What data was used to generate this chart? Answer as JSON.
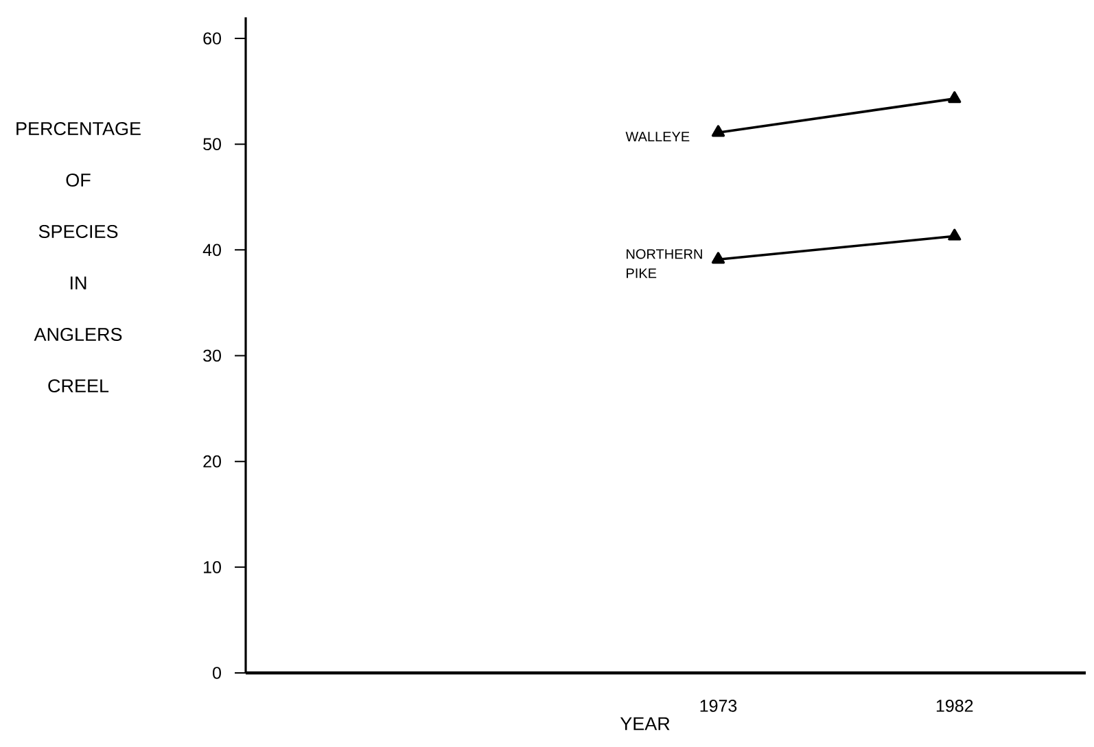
{
  "chart_data": {
    "type": "line",
    "xlabel": "YEAR",
    "ylabel": "PERCENTAGE OF SPECIES IN ANGLERS CREEL",
    "x": [
      1973,
      1982
    ],
    "xlim": [
      1955,
      1987
    ],
    "xticks": [
      1973,
      1982
    ],
    "ylim": [
      0,
      62
    ],
    "yticks": [
      0,
      10,
      20,
      30,
      40,
      50,
      60
    ],
    "series": [
      {
        "name": "WALLEYE",
        "color": "#000000",
        "values": [
          51.1,
          54.3
        ]
      },
      {
        "name": "NORTHERN PIKE",
        "color": "#000000",
        "values": [
          39.1,
          41.3
        ]
      }
    ],
    "marker": "triangle",
    "line_style": "solid"
  }
}
